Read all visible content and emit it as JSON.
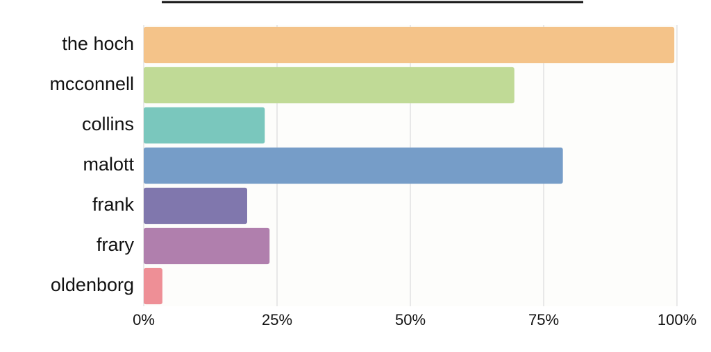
{
  "chart_data": {
    "type": "hbar",
    "categories": [
      "the hoch",
      "mcconnell",
      "collins",
      "malott",
      "frank",
      "frary",
      "oldenborg"
    ],
    "values": [
      99.5,
      69.5,
      22.7,
      78.6,
      19.4,
      23.6,
      3.5
    ],
    "colors": [
      "#f4c389",
      "#c0da96",
      "#7ac7bd",
      "#769dc8",
      "#8077ad",
      "#b07fad",
      "#ee8f96"
    ],
    "xlim": [
      0,
      100
    ],
    "xticks": [
      {
        "value": 0,
        "label": "0%"
      },
      {
        "value": 25,
        "label": "25%"
      },
      {
        "value": 50,
        "label": "50%"
      },
      {
        "value": 75,
        "label": "75%"
      },
      {
        "value": 100,
        "label": "100%"
      }
    ],
    "grid": true
  }
}
